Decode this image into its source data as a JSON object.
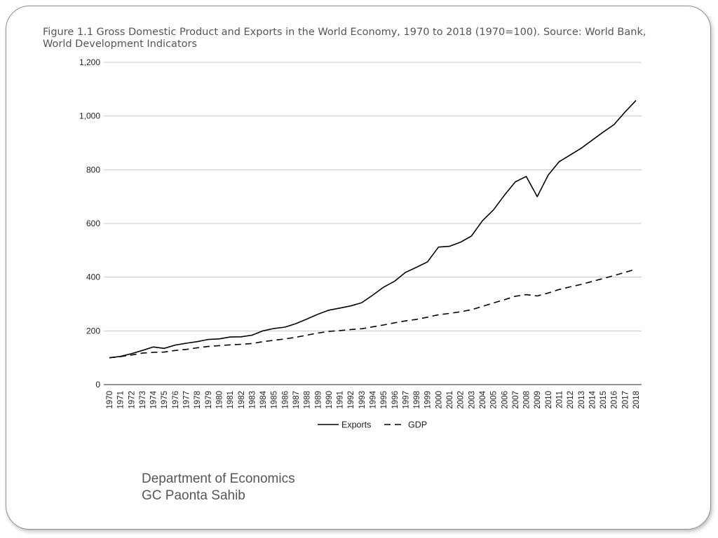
{
  "caption": "Figure 1.1 Gross Domestic Product and Exports in the World Economy, 1970 to 2018 (1970=100). Source: World Bank, World Development Indicators",
  "footer": {
    "line1": "Department of Economics",
    "line2": "GC Paonta Sahib"
  },
  "chart_data": {
    "type": "line",
    "title": "Figure 1.1 Gross Domestic Product and Exports in the World Economy, 1970 to 2018 (1970=100). Source: World Bank, World Development Indicators",
    "xlabel": "",
    "ylabel": "",
    "x": [
      "1970",
      "1971",
      "1972",
      "1973",
      "1974",
      "1975",
      "1976",
      "1977",
      "1978",
      "1979",
      "1980",
      "1981",
      "1982",
      "1983",
      "1984",
      "1985",
      "1986",
      "1987",
      "1988",
      "1989",
      "1990",
      "1991",
      "1992",
      "1993",
      "1994",
      "1995",
      "1996",
      "1997",
      "1998",
      "1999",
      "2000",
      "2001",
      "2002",
      "2003",
      "2004",
      "2005",
      "2006",
      "2007",
      "2008",
      "2009",
      "2010",
      "2011",
      "2012",
      "2013",
      "2014",
      "2015",
      "2016",
      "2017",
      "2018"
    ],
    "ylim": [
      0,
      1200
    ],
    "yticks": [
      0,
      200,
      400,
      600,
      800,
      1000,
      1200
    ],
    "ytick_labels": [
      "0",
      "200",
      "400",
      "600",
      "800",
      "1,000",
      "1,200"
    ],
    "grid": true,
    "legend_position": "bottom",
    "series": [
      {
        "name": "Exports",
        "style": "solid",
        "color": "#000000",
        "values": [
          100,
          105,
          115,
          127,
          140,
          135,
          147,
          154,
          160,
          168,
          170,
          177,
          178,
          184,
          200,
          209,
          214,
          227,
          244,
          262,
          277,
          285,
          293,
          305,
          333,
          363,
          385,
          418,
          437,
          457,
          512,
          515,
          530,
          553,
          610,
          650,
          705,
          755,
          775,
          700,
          780,
          830,
          855,
          880,
          910,
          940,
          968,
          1015,
          1058
        ]
      },
      {
        "name": "GDP",
        "style": "dashed",
        "color": "#000000",
        "values": [
          100,
          104,
          110,
          117,
          120,
          121,
          127,
          131,
          137,
          142,
          145,
          148,
          150,
          153,
          160,
          165,
          170,
          176,
          184,
          192,
          198,
          201,
          205,
          208,
          215,
          222,
          230,
          237,
          243,
          251,
          260,
          265,
          271,
          279,
          291,
          304,
          316,
          329,
          335,
          330,
          341,
          354,
          364,
          373,
          384,
          395,
          406,
          418,
          430
        ]
      }
    ]
  }
}
